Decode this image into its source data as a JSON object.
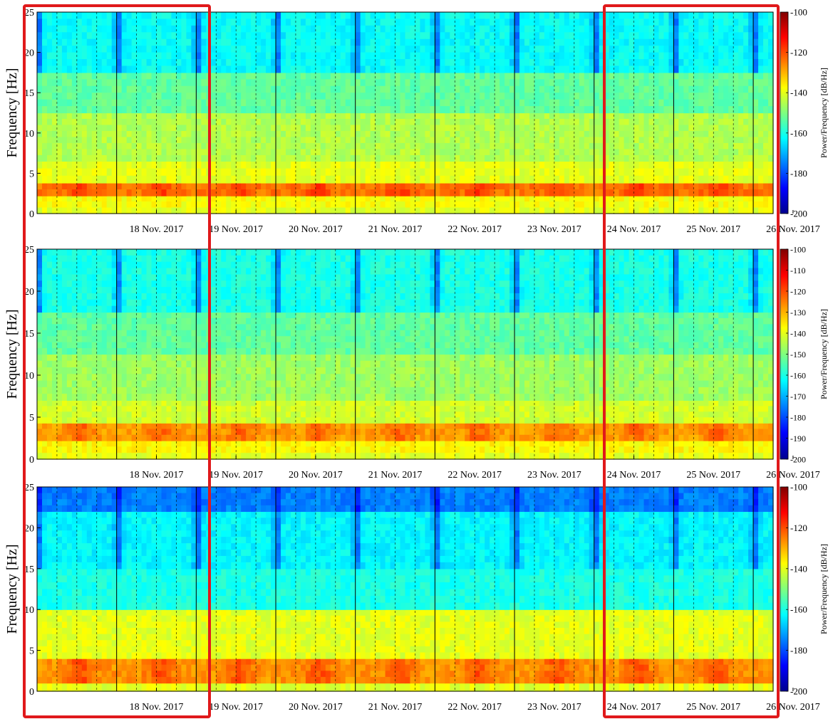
{
  "chart_data": [
    {
      "type": "heatmap",
      "panel": 1,
      "ylabel": "Frequency [Hz]",
      "y_ticks": [
        "25",
        "20",
        "15",
        "10",
        "5",
        "0"
      ],
      "y_tick_values": [
        25,
        20,
        15,
        10,
        5,
        0
      ],
      "ylim": [
        0,
        25
      ],
      "x_ticks": [
        "18 Nov. 2017",
        "19 Nov. 2017",
        "20 Nov. 2017",
        "21 Nov. 2017",
        "22 Nov. 2017",
        "23 Nov. 2017",
        "24 Nov. 2017",
        "25 Nov. 2017",
        "26 Nov. 2017"
      ],
      "colorbar_label": "Power/Frequency [dB/Hz]",
      "colorbar_ticks": [
        "-100",
        "-120",
        "-140",
        "-160",
        "-180",
        "-200"
      ],
      "colorbar_tick_values": [
        -100,
        -120,
        -140,
        -160,
        -180,
        -200
      ],
      "clim": [
        -200,
        -100
      ],
      "bands": [
        {
          "f_low": 0,
          "f_high": 0.8,
          "power": -140
        },
        {
          "f_low": 0.8,
          "f_high": 2.2,
          "power": -138
        },
        {
          "f_low": 2.2,
          "f_high": 3.8,
          "power": -124,
          "daytime_power": -118
        },
        {
          "f_low": 3.8,
          "f_high": 6.5,
          "power": -140
        },
        {
          "f_low": 6.5,
          "f_high": 12.5,
          "power": -145
        },
        {
          "f_low": 12.5,
          "f_high": 17.5,
          "power": -153
        },
        {
          "f_low": 17.5,
          "f_high": 25,
          "power": -162,
          "night_power": -176
        }
      ]
    },
    {
      "type": "heatmap",
      "panel": 2,
      "ylabel": "Frequency [Hz]",
      "y_ticks": [
        "25",
        "20",
        "15",
        "10",
        "5",
        "0"
      ],
      "y_tick_values": [
        25,
        20,
        15,
        10,
        5,
        0
      ],
      "ylim": [
        0,
        25
      ],
      "x_ticks": [
        "18 Nov. 2017",
        "19 Nov. 2017",
        "20 Nov. 2017",
        "21 Nov. 2017",
        "22 Nov. 2017",
        "23 Nov. 2017",
        "24 Nov. 2017",
        "25 Nov. 2017",
        "26 Nov. 2017"
      ],
      "colorbar_label": "Power/Frequency [dB/Hz]",
      "colorbar_ticks": [
        "-100",
        "-110",
        "-120",
        "-130",
        "-140",
        "-150",
        "-160",
        "-170",
        "-180",
        "-190",
        "-200"
      ],
      "colorbar_tick_values": [
        -100,
        -110,
        -120,
        -130,
        -140,
        -150,
        -160,
        -170,
        -180,
        -190,
        -200
      ],
      "clim": [
        -200,
        -100
      ],
      "bands": [
        {
          "f_low": 0,
          "f_high": 0.8,
          "power": -140
        },
        {
          "f_low": 0.8,
          "f_high": 2.2,
          "power": -137
        },
        {
          "f_low": 2.2,
          "f_high": 4.3,
          "power": -128,
          "daytime_power": -122
        },
        {
          "f_low": 4.3,
          "f_high": 7,
          "power": -142
        },
        {
          "f_low": 7,
          "f_high": 12.5,
          "power": -147
        },
        {
          "f_low": 12.5,
          "f_high": 17.5,
          "power": -153
        },
        {
          "f_low": 17.5,
          "f_high": 25,
          "power": -160,
          "night_power": -175
        }
      ]
    },
    {
      "type": "heatmap",
      "panel": 3,
      "ylabel": "Frequency [Hz]",
      "y_ticks": [
        "25",
        "20",
        "15",
        "10",
        "5",
        "0"
      ],
      "y_tick_values": [
        25,
        20,
        15,
        10,
        5,
        0
      ],
      "ylim": [
        0,
        25
      ],
      "x_ticks": [
        "18 Nov. 2017",
        "19 Nov. 2017",
        "20 Nov. 2017",
        "21 Nov. 2017",
        "22 Nov. 2017",
        "23 Nov. 2017",
        "24 Nov. 2017",
        "25 Nov. 2017",
        "26 Nov. 2017"
      ],
      "colorbar_label": "Power/Frequency [dB/Hz]",
      "colorbar_ticks": [
        "-100",
        "-120",
        "-140",
        "-160",
        "-180",
        "-200"
      ],
      "colorbar_tick_values": [
        -100,
        -120,
        -140,
        -160,
        -180,
        -200
      ],
      "clim": [
        -200,
        -100
      ],
      "bands": [
        {
          "f_low": 0,
          "f_high": 1,
          "power": -140
        },
        {
          "f_low": 1,
          "f_high": 4,
          "power": -127,
          "daytime_power": -120
        },
        {
          "f_low": 4,
          "f_high": 10,
          "power": -140
        },
        {
          "f_low": 10,
          "f_high": 15,
          "power": -160
        },
        {
          "f_low": 15,
          "f_high": 22,
          "power": -163,
          "night_power": -176
        },
        {
          "f_low": 22,
          "f_high": 25,
          "power": -175,
          "night_power": -185
        }
      ]
    }
  ],
  "highlight_boxes": [
    {
      "from_date": "17 Nov. 2017",
      "to_date": "19 Nov. 2017",
      "color": "#e0191b"
    },
    {
      "from_date": "25 Nov. 2017",
      "to_date": "26 Nov. 2017",
      "color": "#e0191b"
    }
  ],
  "colors": {
    "colormap": "jet",
    "highlight": "#e0191b",
    "separator": "#000000"
  }
}
